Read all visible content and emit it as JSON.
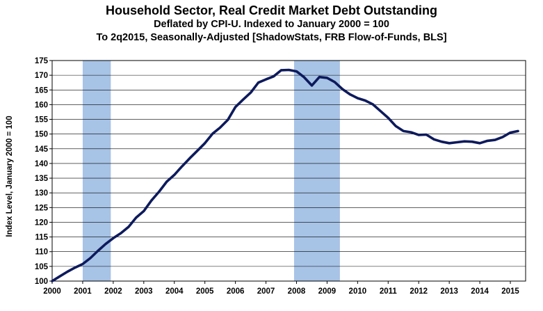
{
  "chart_data": {
    "type": "line",
    "title": "Household Sector, Real Credit Market Debt Outstanding",
    "subtitle_line1": "Deflated by CPI-U. Indexed to January 2000 = 100",
    "subtitle_line2": "To 2q2015, Seasonally-Adjusted [ShadowStats, FRB Flow-of-Funds, BLS]",
    "xlabel": "",
    "ylabel": "Index Level, January 2000 = 100",
    "ylim": [
      100,
      175
    ],
    "xlim": [
      2000.0,
      2015.5
    ],
    "yticks": [
      100,
      105,
      110,
      115,
      120,
      125,
      130,
      135,
      140,
      145,
      150,
      155,
      160,
      165,
      170,
      175
    ],
    "xtick_labels": [
      "2000",
      "2001",
      "2002",
      "2003",
      "2004",
      "2005",
      "2006",
      "2007",
      "2008",
      "2009",
      "2010",
      "2011",
      "2012",
      "2013",
      "2014",
      "2015"
    ],
    "grid": true,
    "legend": "none",
    "colors": {
      "line": "#0d1a5c",
      "recession": "#a7c3e6",
      "grid": "#000000"
    },
    "recessions": [
      {
        "start": 2001.0,
        "end": 2001.92
      },
      {
        "start": 2007.92,
        "end": 2009.42
      }
    ],
    "series": [
      {
        "x": [
          2000.0,
          2000.25,
          2000.5,
          2000.75,
          2001.0,
          2001.25,
          2001.5,
          2001.75,
          2002.0,
          2002.25,
          2002.5,
          2002.75,
          2003.0,
          2003.25,
          2003.5,
          2003.75,
          2004.0,
          2004.25,
          2004.5,
          2004.75,
          2005.0,
          2005.25,
          2005.5,
          2005.75,
          2006.0,
          2006.25,
          2006.5,
          2006.75,
          2007.0,
          2007.25,
          2007.5,
          2007.75,
          2008.0,
          2008.25,
          2008.5,
          2008.75,
          2009.0,
          2009.25,
          2009.5,
          2009.75,
          2010.0,
          2010.25,
          2010.5,
          2010.75,
          2011.0,
          2011.25,
          2011.5,
          2011.75,
          2012.0,
          2012.25,
          2012.5,
          2012.75,
          2013.0,
          2013.25,
          2013.5,
          2013.75,
          2014.0,
          2014.25,
          2014.5,
          2014.75,
          2015.0,
          2015.25
        ],
        "values": [
          100.0,
          101.6,
          103.2,
          104.6,
          105.8,
          107.8,
          110.3,
          112.6,
          114.6,
          116.3,
          118.4,
          121.6,
          123.8,
          127.4,
          130.4,
          133.8,
          136.1,
          139.0,
          141.7,
          144.3,
          146.9,
          150.1,
          152.2,
          154.8,
          159.2,
          161.7,
          164.1,
          167.5,
          168.6,
          169.6,
          171.7,
          171.8,
          171.3,
          169.3,
          166.5,
          169.4,
          169.1,
          167.7,
          165.3,
          163.5,
          162.2,
          161.4,
          160.1,
          157.8,
          155.5,
          152.7,
          151.0,
          150.6,
          149.7,
          149.8,
          148.2,
          147.4,
          146.9,
          147.2,
          147.5,
          147.4,
          146.9,
          147.7,
          148.0,
          149.0,
          150.5,
          151.0
        ]
      }
    ]
  }
}
